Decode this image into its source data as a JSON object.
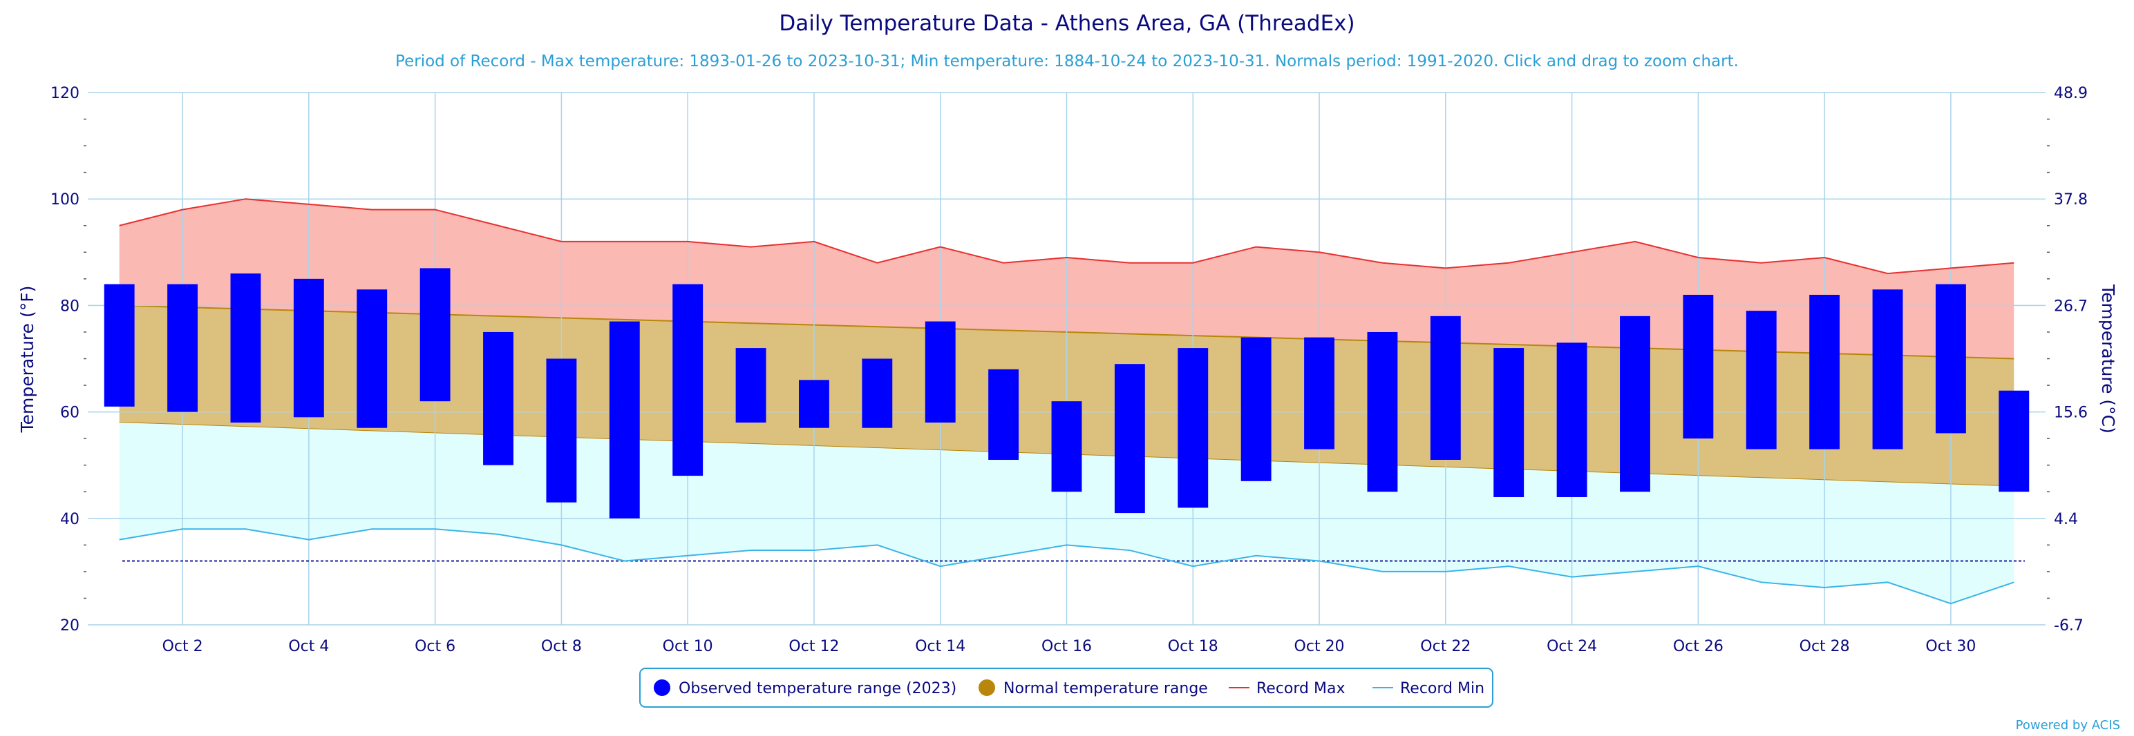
{
  "chart_data": {
    "type": "bar",
    "title": "Daily Temperature Data - Athens Area, GA (ThreadEx)",
    "subtitle": "Period of Record - Max temperature: 1893-01-26 to 2023-10-31; Min temperature: 1884-10-24 to 2023-10-31. Normals period: 1991-2020. Click and drag to zoom chart.",
    "ylabel": "Temperature (°F)",
    "y2label": "Temperature (°C)",
    "ylim": [
      20,
      120
    ],
    "yticks": [
      20,
      40,
      60,
      80,
      100,
      120
    ],
    "y2ticks": [
      "-6.7",
      "4.4",
      "15.6",
      "26.7",
      "37.8",
      "48.9"
    ],
    "x": [
      1,
      2,
      3,
      4,
      5,
      6,
      7,
      8,
      9,
      10,
      11,
      12,
      13,
      14,
      15,
      16,
      17,
      18,
      19,
      20,
      21,
      22,
      23,
      24,
      25,
      26,
      27,
      28,
      29,
      30,
      31
    ],
    "xtick_labels": [
      "Oct 2",
      "Oct 4",
      "Oct 6",
      "Oct 8",
      "Oct 10",
      "Oct 12",
      "Oct 14",
      "Oct 16",
      "Oct 18",
      "Oct 20",
      "Oct 22",
      "Oct 24",
      "Oct 26",
      "Oct 28",
      "Oct 30"
    ],
    "xtick_days": [
      2,
      4,
      6,
      8,
      10,
      12,
      14,
      16,
      18,
      20,
      22,
      24,
      26,
      28,
      30
    ],
    "freezing_line": 32,
    "grid": true,
    "legend_position": "bottom-center",
    "series": [
      {
        "name": "Observed temperature range (2023)",
        "color": "#0000ff",
        "high": [
          84,
          84,
          86,
          85,
          83,
          87,
          75,
          70,
          77,
          84,
          72,
          66,
          70,
          77,
          68,
          62,
          69,
          72,
          74,
          74,
          75,
          78,
          72,
          73,
          78,
          82,
          79,
          82,
          83,
          84,
          64
        ],
        "low": [
          61,
          60,
          58,
          59,
          57,
          62,
          50,
          43,
          40,
          48,
          58,
          57,
          57,
          58,
          51,
          45,
          41,
          42,
          47,
          53,
          45,
          51,
          44,
          44,
          45,
          55,
          53,
          53,
          53,
          56,
          45
        ]
      },
      {
        "name": "Normal temperature range",
        "color": "#b8860b",
        "high_start": 80,
        "high_end": 70,
        "low_start": 58,
        "low_end": 46
      },
      {
        "name": "Record Max",
        "color": "#e8302f",
        "values": [
          95,
          98,
          100,
          99,
          98,
          98,
          95,
          92,
          92,
          92,
          91,
          92,
          88,
          91,
          88,
          89,
          88,
          88,
          91,
          90,
          88,
          87,
          88,
          90,
          92,
          89,
          88,
          89,
          86,
          87,
          88
        ]
      },
      {
        "name": "Record Min",
        "color": "#3ab4e8",
        "values": [
          36,
          38,
          38,
          36,
          38,
          38,
          37,
          35,
          32,
          33,
          34,
          34,
          35,
          31,
          33,
          35,
          34,
          31,
          33,
          32,
          30,
          30,
          31,
          29,
          30,
          31,
          28,
          27,
          28,
          24,
          28
        ]
      }
    ]
  },
  "credit": "Powered by ACIS"
}
